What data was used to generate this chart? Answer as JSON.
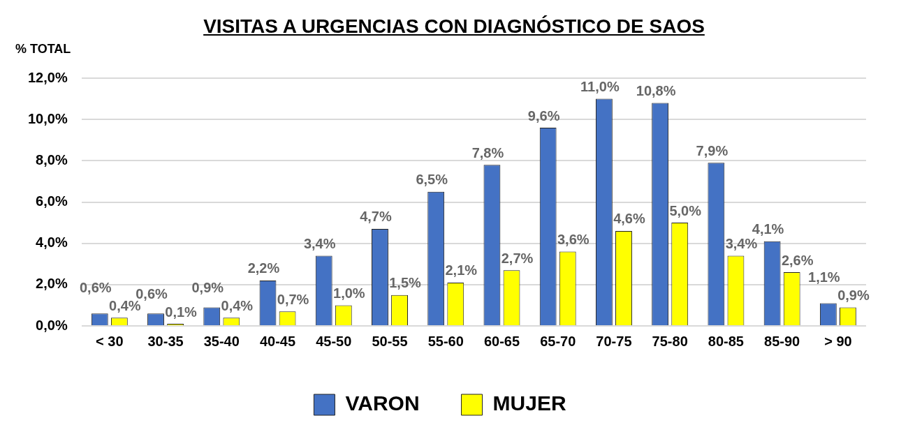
{
  "chart_data": {
    "type": "bar",
    "title": "VISITAS A URGENCIAS CON DIAGNÓSTICO DE SAOS",
    "ylabel": "% TOTAL",
    "categories": [
      "< 30",
      "30-35",
      "35-40",
      "40-45",
      "45-50",
      "50-55",
      "55-60",
      "60-65",
      "65-70",
      "70-75",
      "75-80",
      "80-85",
      "85-90",
      "> 90"
    ],
    "series": [
      {
        "name": "VARON",
        "color": "#4472c4",
        "values": [
          0.6,
          0.6,
          0.9,
          2.2,
          3.4,
          4.7,
          6.5,
          7.8,
          9.6,
          11.0,
          10.8,
          7.9,
          4.1,
          1.1
        ],
        "value_labels": [
          "0,6%",
          "0,6%",
          "0,9%",
          "2,2%",
          "3,4%",
          "4,7%",
          "6,5%",
          "7,8%",
          "9,6%",
          "11,0%",
          "10,8%",
          "7,9%",
          "4,1%",
          "1,1%"
        ]
      },
      {
        "name": "MUJER",
        "color": "#ffff00",
        "values": [
          0.4,
          0.1,
          0.4,
          0.7,
          1.0,
          1.5,
          2.1,
          2.7,
          3.6,
          4.6,
          5.0,
          3.4,
          2.6,
          0.9
        ],
        "value_labels": [
          "0,4%",
          "0,1%",
          "0,4%",
          "0,7%",
          "1,0%",
          "1,5%",
          "2,1%",
          "2,7%",
          "3,6%",
          "4,6%",
          "5,0%",
          "3,4%",
          "2,6%",
          "0,9%"
        ]
      }
    ],
    "ylim": [
      0,
      12
    ],
    "yticks": [
      {
        "value": 0,
        "label": "0,0%"
      },
      {
        "value": 2,
        "label": "2,0%"
      },
      {
        "value": 4,
        "label": "4,0%"
      },
      {
        "value": 6,
        "label": "6,0%"
      },
      {
        "value": 8,
        "label": "8,0%"
      },
      {
        "value": 10,
        "label": "10,0%"
      },
      {
        "value": 12,
        "label": "12,0%"
      }
    ],
    "grid": "y",
    "legend": "bottom"
  }
}
